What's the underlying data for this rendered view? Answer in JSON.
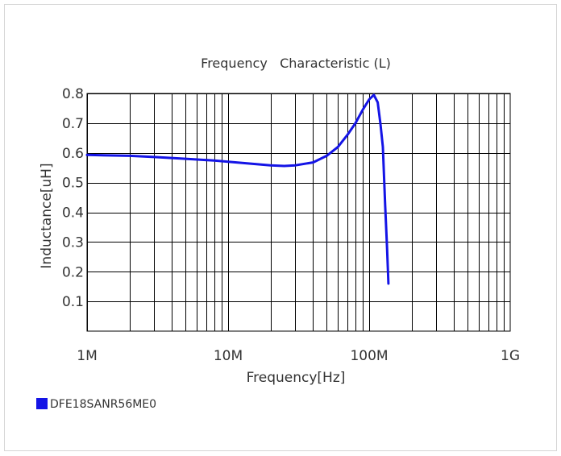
{
  "chart_data": {
    "type": "line",
    "title": "Frequency   Characteristic (L)",
    "xlabel": "Frequency[Hz]",
    "ylabel": "Inductance[uH]",
    "x_scale": "log",
    "xlim": [
      1000000,
      1000000000
    ],
    "ylim": [
      0,
      0.8
    ],
    "x_ticks": [
      {
        "value": 1000000,
        "label": "1M"
      },
      {
        "value": 10000000,
        "label": "10M"
      },
      {
        "value": 100000000,
        "label": "100M"
      },
      {
        "value": 1000000000,
        "label": "1G"
      }
    ],
    "y_ticks": [
      {
        "value": 0.1,
        "label": "0.1"
      },
      {
        "value": 0.2,
        "label": "0.2"
      },
      {
        "value": 0.3,
        "label": "0.3"
      },
      {
        "value": 0.4,
        "label": "0.4"
      },
      {
        "value": 0.5,
        "label": "0.5"
      },
      {
        "value": 0.6,
        "label": "0.6"
      },
      {
        "value": 0.7,
        "label": "0.7"
      },
      {
        "value": 0.8,
        "label": "0.8"
      }
    ],
    "grid": true,
    "legend_position": "bottom-left",
    "series": [
      {
        "name": "DFE18SANR56ME0",
        "color": "#1414e6",
        "points": [
          [
            1000000,
            0.593
          ],
          [
            2000000,
            0.59
          ],
          [
            3000000,
            0.586
          ],
          [
            5000000,
            0.58
          ],
          [
            8000000,
            0.574
          ],
          [
            10000000,
            0.57
          ],
          [
            15000000,
            0.563
          ],
          [
            20000000,
            0.558
          ],
          [
            25000000,
            0.556
          ],
          [
            30000000,
            0.558
          ],
          [
            40000000,
            0.568
          ],
          [
            50000000,
            0.59
          ],
          [
            60000000,
            0.62
          ],
          [
            70000000,
            0.66
          ],
          [
            80000000,
            0.7
          ],
          [
            90000000,
            0.745
          ],
          [
            100000000,
            0.78
          ],
          [
            108000000,
            0.795
          ],
          [
            115000000,
            0.77
          ],
          [
            120000000,
            0.7
          ],
          [
            125000000,
            0.62
          ],
          [
            130000000,
            0.42
          ],
          [
            134000000,
            0.28
          ],
          [
            137000000,
            0.16
          ]
        ]
      }
    ]
  }
}
